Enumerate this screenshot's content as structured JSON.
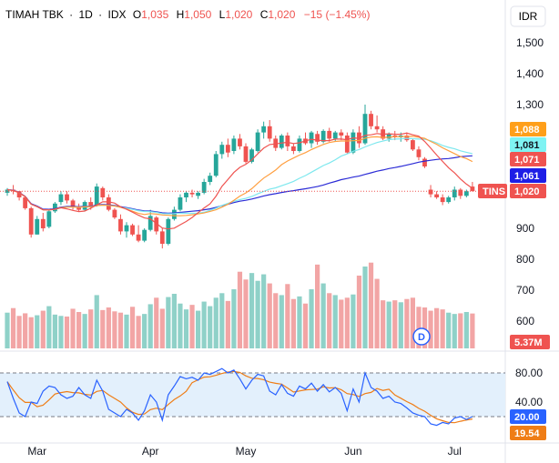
{
  "header": {
    "name": "TIMAH TBK",
    "sep1": "·",
    "interval": "1D",
    "sep2": "·",
    "exchange": "IDX",
    "o_label": "O",
    "o_value": "1,035",
    "h_label": "H",
    "h_value": "1,050",
    "l_label": "L",
    "l_value": "1,020",
    "c_label": "C",
    "c_value": "1,020",
    "change": "−15 (−1.45%)"
  },
  "currency": "IDR",
  "price_axis_labels": [
    "1,500",
    "1,400",
    "1,300",
    "900",
    "800",
    "700",
    "600"
  ],
  "rsi_axis_labels": [
    "80.00",
    "40.00"
  ],
  "x_axis_labels": [
    "Mar",
    "Apr",
    "May",
    "Jun",
    "Jul"
  ],
  "badges": {
    "ma_slow": "1,088",
    "ma_mid": "1,081",
    "ma_fast": "1,071",
    "ma_long": "1,061",
    "symbol": "TINS",
    "last_price": "1,020",
    "volume": "5.37M",
    "rsi": "20.00",
    "rsi_ma": "19.54"
  },
  "dividend_marker": "D",
  "colors": {
    "up": "#26a69a",
    "down": "#ef5350",
    "vol_up": "#8fd1c8",
    "vol_down": "#f2a5a5",
    "ma_fast": "#ef5350",
    "ma_slow": "#ff9f40",
    "ma_mid": "#7ee8ee",
    "ma_long": "#2b2bd6",
    "rsi": "#2962ff",
    "rsi_ma": "#ef7d16",
    "badge_fast": "#ef5350",
    "badge_slow": "#ff9f1a",
    "badge_mid": "#7ff3f3",
    "badge_long": "#1e1ee6",
    "badge_last": "#ef5350",
    "badge_rsi": "#2962ff",
    "badge_rsi_ma": "#ef7d16",
    "rsi_band": "#e3f0fc"
  },
  "chart_data": {
    "type": "candlestick",
    "symbol": "TINS",
    "exchange": "IDX",
    "interval": "1D",
    "price_range": [
      780,
      1580
    ],
    "x_labels": [
      "Mar",
      "Apr",
      "May",
      "Jun",
      "Jul"
    ],
    "ohlc": [
      [
        1015,
        1030,
        1005,
        1025
      ],
      [
        1025,
        1040,
        1010,
        1020
      ],
      [
        1020,
        1020,
        990,
        1000
      ],
      [
        1000,
        1005,
        960,
        965
      ],
      [
        965,
        970,
        870,
        880
      ],
      [
        880,
        940,
        880,
        930
      ],
      [
        930,
        950,
        890,
        900
      ],
      [
        905,
        960,
        900,
        955
      ],
      [
        955,
        985,
        950,
        980
      ],
      [
        985,
        1020,
        975,
        1010
      ],
      [
        1010,
        1020,
        980,
        990
      ],
      [
        990,
        995,
        960,
        970
      ],
      [
        970,
        980,
        955,
        960
      ],
      [
        960,
        990,
        955,
        985
      ],
      [
        985,
        1000,
        960,
        970
      ],
      [
        975,
        1045,
        970,
        1035
      ],
      [
        1030,
        1035,
        990,
        1000
      ],
      [
        1000,
        1010,
        955,
        960
      ],
      [
        960,
        965,
        930,
        935
      ],
      [
        930,
        945,
        880,
        890
      ],
      [
        890,
        920,
        870,
        910
      ],
      [
        910,
        915,
        875,
        880
      ],
      [
        880,
        910,
        855,
        860
      ],
      [
        860,
        900,
        855,
        895
      ],
      [
        895,
        960,
        890,
        940
      ],
      [
        935,
        940,
        880,
        890
      ],
      [
        890,
        900,
        835,
        850
      ],
      [
        850,
        935,
        845,
        930
      ],
      [
        930,
        970,
        925,
        960
      ],
      [
        960,
        1010,
        955,
        1000
      ],
      [
        1000,
        1020,
        985,
        1015
      ],
      [
        1015,
        1025,
        1000,
        1010
      ],
      [
        1005,
        1020,
        995,
        1015
      ],
      [
        1015,
        1060,
        1010,
        1050
      ],
      [
        1050,
        1080,
        1040,
        1070
      ],
      [
        1070,
        1150,
        1065,
        1140
      ],
      [
        1140,
        1180,
        1125,
        1170
      ],
      [
        1170,
        1190,
        1130,
        1145
      ],
      [
        1150,
        1200,
        1140,
        1190
      ],
      [
        1190,
        1205,
        1155,
        1165
      ],
      [
        1165,
        1175,
        1110,
        1115
      ],
      [
        1115,
        1160,
        1110,
        1155
      ],
      [
        1150,
        1220,
        1145,
        1210
      ],
      [
        1210,
        1245,
        1190,
        1230
      ],
      [
        1230,
        1250,
        1180,
        1190
      ],
      [
        1190,
        1200,
        1150,
        1160
      ],
      [
        1160,
        1205,
        1155,
        1200
      ],
      [
        1200,
        1210,
        1150,
        1165
      ],
      [
        1165,
        1175,
        1140,
        1150
      ],
      [
        1150,
        1200,
        1145,
        1190
      ],
      [
        1190,
        1210,
        1170,
        1175
      ],
      [
        1175,
        1215,
        1160,
        1210
      ],
      [
        1205,
        1215,
        1170,
        1180
      ],
      [
        1180,
        1220,
        1175,
        1215
      ],
      [
        1215,
        1225,
        1180,
        1190
      ],
      [
        1190,
        1215,
        1180,
        1210
      ],
      [
        1210,
        1220,
        1185,
        1200
      ],
      [
        1200,
        1210,
        1140,
        1145
      ],
      [
        1145,
        1220,
        1140,
        1210
      ],
      [
        1210,
        1230,
        1160,
        1175
      ],
      [
        1175,
        1300,
        1170,
        1270
      ],
      [
        1270,
        1280,
        1220,
        1230
      ],
      [
        1230,
        1265,
        1210,
        1220
      ],
      [
        1220,
        1230,
        1185,
        1190
      ],
      [
        1190,
        1210,
        1180,
        1205
      ],
      [
        1200,
        1215,
        1185,
        1195
      ],
      [
        1195,
        1210,
        1180,
        1200
      ],
      [
        1200,
        1210,
        1180,
        1185
      ],
      [
        1185,
        1190,
        1150,
        1155
      ],
      [
        1155,
        1165,
        1120,
        1130
      ],
      [
        1125,
        1130,
        1095,
        1100
      ],
      [
        1025,
        1040,
        1000,
        1010
      ],
      [
        1010,
        1020,
        995,
        1000
      ],
      [
        1000,
        1010,
        975,
        985
      ],
      [
        985,
        1005,
        980,
        1000
      ],
      [
        1000,
        1035,
        990,
        1025
      ],
      [
        1025,
        1030,
        995,
        1005
      ],
      [
        1005,
        1025,
        1000,
        1020
      ],
      [
        1035,
        1050,
        1020,
        1020
      ]
    ],
    "volume_millions": [
      5.5,
      6.2,
      5.0,
      5.4,
      4.8,
      5.1,
      5.8,
      6.5,
      5.2,
      5.0,
      4.9,
      6.1,
      5.6,
      5.3,
      6.0,
      8.2,
      5.9,
      6.3,
      5.7,
      5.5,
      5.2,
      6.4,
      5.0,
      5.3,
      6.8,
      7.8,
      6.1,
      7.9,
      8.4,
      6.9,
      6.0,
      6.7,
      5.8,
      7.2,
      6.5,
      7.8,
      8.5,
      7.3,
      9.1,
      11.8,
      10.6,
      11.6,
      10.4,
      11.4,
      10.0,
      8.5,
      8.2,
      9.9,
      7.6,
      8.0,
      6.9,
      9.1,
      12.9,
      10.0,
      8.5,
      8.2,
      7.5,
      7.8,
      8.3,
      11.2,
      12.6,
      13.2,
      10.7,
      7.4,
      7.2,
      7.4,
      7.1,
      7.6,
      7.8,
      6.4,
      6.3,
      5.8,
      6.2,
      6.0,
      5.5,
      5.3,
      5.4,
      5.6,
      5.37
    ],
    "ma_fast_last": 1071,
    "ma_mid_last": 1081,
    "ma_slow_last": 1088,
    "ma_long_last": 1061,
    "last_close": 1020,
    "rsi": {
      "levels": [
        80,
        40
      ],
      "upper": 80,
      "lower": 20,
      "range": [
        0,
        100
      ],
      "last_rsi": 20.0,
      "last_ma": 19.54,
      "rsi_values": [
        68,
        45,
        25,
        20,
        40,
        38,
        55,
        62,
        60,
        50,
        45,
        48,
        60,
        50,
        45,
        70,
        55,
        30,
        25,
        20,
        30,
        25,
        15,
        28,
        50,
        40,
        15,
        50,
        62,
        75,
        72,
        74,
        70,
        80,
        78,
        82,
        86,
        80,
        84,
        72,
        58,
        70,
        78,
        76,
        55,
        50,
        64,
        52,
        48,
        62,
        58,
        66,
        55,
        64,
        54,
        60,
        52,
        28,
        58,
        40,
        80,
        60,
        55,
        45,
        48,
        40,
        38,
        32,
        25,
        22,
        20,
        10,
        8,
        12,
        10,
        18,
        20,
        16,
        20
      ]
    }
  }
}
